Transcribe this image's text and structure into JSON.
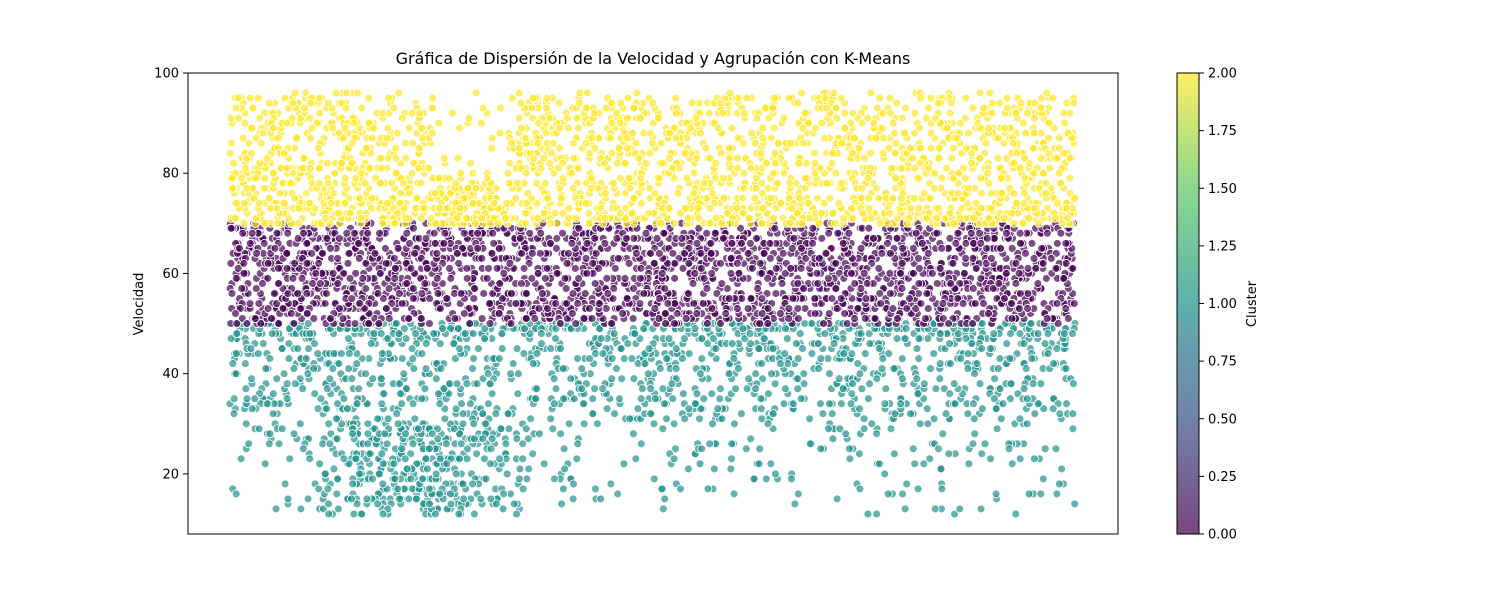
{
  "chart_data": {
    "type": "scatter",
    "title": "Gráfica de Dispersión de la Velocidad y Agrupación con K-Means",
    "xlabel": "",
    "ylabel": "Velocidad",
    "xticks_visible": false,
    "ylim": [
      8,
      100
    ],
    "yticks": [
      20,
      40,
      60,
      80,
      100
    ],
    "grid": false,
    "point_alpha": 0.7,
    "point_edge_color": "#ffffff",
    "colorbar": {
      "label": "Cluster",
      "min": 0.0,
      "max": 2.0,
      "ticks": [
        "0.00",
        "0.25",
        "0.50",
        "0.75",
        "1.00",
        "1.25",
        "1.50",
        "1.75",
        "2.00"
      ],
      "colormap": "viridis",
      "stops": [
        "#440154",
        "#3b528b",
        "#21918c",
        "#5ec962",
        "#fde725"
      ]
    },
    "series": [
      {
        "cluster": 0,
        "y_range": [
          50,
          70
        ],
        "point_count": 2300,
        "color": "#440154"
      },
      {
        "cluster": 1,
        "y_range": [
          12,
          50
        ],
        "point_count": 1900,
        "color": "#21918c"
      },
      {
        "cluster": 2,
        "y_range": [
          70,
          96
        ],
        "point_count": 2300,
        "color": "#fde725"
      }
    ]
  }
}
